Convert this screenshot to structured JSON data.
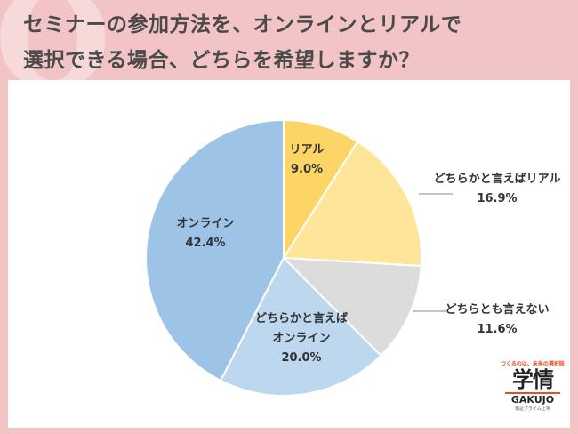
{
  "header": {
    "title_line1": "セミナーの参加方法を、オンラインとリアルで",
    "title_line2": "選択できる場合、どちらを希望しますか？"
  },
  "chart_data": {
    "type": "pie",
    "title": "セミナーの参加方法を、オンラインとリアルで選択できる場合、どちらを希望しますか？",
    "slices": [
      {
        "label": "リアル",
        "label_lines": [
          "リアル"
        ],
        "value": 9.0,
        "display": "9.0%",
        "color": "#fdd466"
      },
      {
        "label": "どちらかと言えばリアル",
        "label_lines": [
          "どちらかと言えばリアル"
        ],
        "value": 16.9,
        "display": "16.9%",
        "color": "#fee599"
      },
      {
        "label": "どちらとも言えない",
        "label_lines": [
          "どちらとも言えない"
        ],
        "value": 11.6,
        "display": "11.6%",
        "color": "#dcdcdc"
      },
      {
        "label": "どちらかと言えばオンライン",
        "label_lines": [
          "どちらかと言えば",
          "オンライン"
        ],
        "value": 20.0,
        "display": "20.0%",
        "color": "#bdd7ee"
      },
      {
        "label": "オンライン",
        "label_lines": [
          "オンライン"
        ],
        "value": 42.4,
        "display": "42.4%",
        "color": "#9dc3e6"
      }
    ],
    "start_angle_deg": 0,
    "direction": "clockwise",
    "legend": "none"
  },
  "logo": {
    "tagline": "つくるのは、未来の選択肢",
    "name": "学情",
    "romaji": "GAKUJO",
    "footer": "東証プライム上場"
  }
}
